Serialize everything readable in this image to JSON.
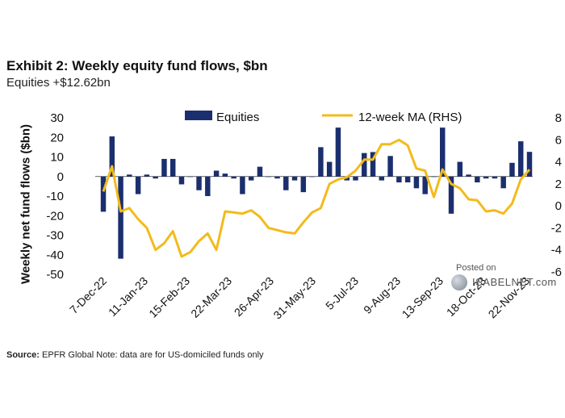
{
  "header": {
    "title": "Exhibit 2: Weekly equity fund flows, $bn",
    "subtitle": "Equities +$12.62bn"
  },
  "footnote": {
    "source_label": "Source:",
    "text": "EPFR Global  Note: data are for US-domiciled funds only"
  },
  "watermark": {
    "posted": "Posted on",
    "site": "ISABELNET.com"
  },
  "colors": {
    "bars": "#1b2f6e",
    "line": "#f2bb1c",
    "axis_text": "#111111"
  },
  "chart_data": {
    "type": "bar+line",
    "ylabel": "Weekly net fund flows ($bn)",
    "ylim": [
      -50,
      30
    ],
    "yticks": [
      30,
      20,
      10,
      0,
      -10,
      -20,
      -30,
      -40,
      -50
    ],
    "y2lim": [
      -6,
      8
    ],
    "y2ticks": [
      8,
      6,
      4,
      2,
      0,
      -2,
      -4,
      -6
    ],
    "xtick_labels": [
      "7-Dec-22",
      "11-Jan-23",
      "15-Feb-23",
      "22-Mar-23",
      "26-Apr-23",
      "31-May-23",
      "5-Jul-23",
      "9-Aug-23",
      "13-Sep-23",
      "18-Oct-23",
      "22-Nov-23"
    ],
    "legend": {
      "placement": "top-center"
    },
    "series": [
      {
        "name": "Equities",
        "type": "bar",
        "axis": "left",
        "values": [
          -18,
          20.5,
          -42,
          1,
          -9,
          1,
          -1,
          9,
          9,
          -4,
          0,
          -7,
          -10,
          3,
          1.5,
          -1,
          -9,
          -2,
          5,
          0,
          -1,
          -7,
          -2,
          -8,
          0,
          15,
          7.5,
          25,
          -2,
          -2,
          12,
          12.5,
          -2,
          10.5,
          -3,
          -3,
          -6,
          -9,
          0,
          25,
          -19,
          7.5,
          1,
          -3,
          -1,
          -1,
          -6,
          7,
          18,
          12.6
        ]
      },
      {
        "name": "12-week MA (RHS)",
        "type": "line",
        "axis": "right",
        "values": [
          1.3,
          3.6,
          -0.5,
          -0.2,
          -1.2,
          -2.0,
          -4.0,
          -3.4,
          -2.3,
          -4.6,
          -4.2,
          -3.2,
          -2.5,
          -4.0,
          -0.5,
          -0.6,
          -0.7,
          -0.4,
          -1.0,
          -2.0,
          -2.2,
          -2.4,
          -2.5,
          -1.5,
          -0.6,
          -0.2,
          2.0,
          2.4,
          2.6,
          3.2,
          4.2,
          4.2,
          5.6,
          5.6,
          6.0,
          5.5,
          3.4,
          3.2,
          0.8,
          3.3,
          2.0,
          1.6,
          0.6,
          0.5,
          -0.5,
          -0.4,
          -0.7,
          0.2,
          2.4,
          3.3
        ]
      }
    ]
  }
}
